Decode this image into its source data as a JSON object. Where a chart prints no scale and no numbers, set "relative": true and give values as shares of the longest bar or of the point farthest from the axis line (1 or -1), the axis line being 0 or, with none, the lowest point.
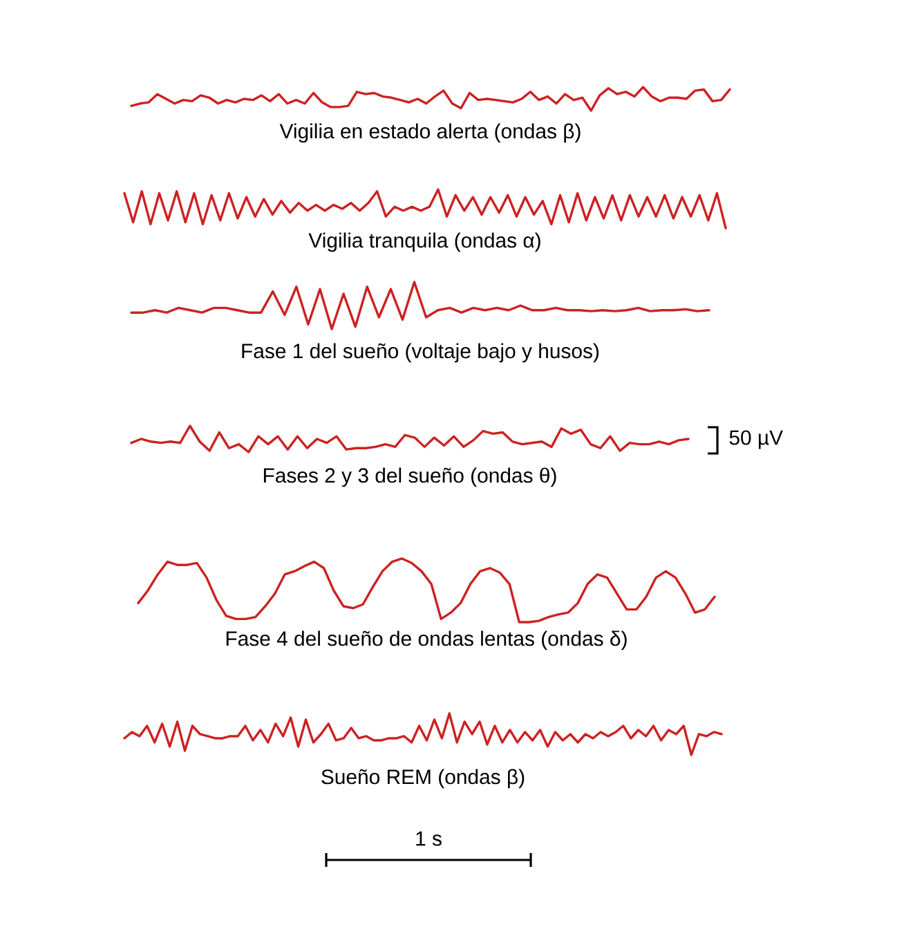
{
  "chart_data": [
    {
      "type": "line",
      "title": "Vigilia en estado alerta (ondas β)",
      "relative": true,
      "color": "#cc2222",
      "categories": [
        null,
        null,
        null,
        null,
        null,
        null,
        null,
        null,
        null,
        null,
        null,
        null,
        null,
        null,
        null,
        null,
        null,
        null,
        null,
        null,
        null,
        null,
        null,
        null,
        null,
        null,
        null,
        null,
        null,
        null,
        null,
        null,
        null,
        null,
        null,
        null,
        null,
        null,
        null,
        null,
        null,
        null,
        null,
        null,
        null,
        null,
        null,
        null,
        null,
        null,
        null,
        null,
        null,
        null,
        null,
        null,
        null,
        null,
        null,
        null,
        null,
        null,
        null,
        null,
        null,
        null,
        null,
        null,
        null,
        null
      ],
      "values": [
        0.2,
        0.3,
        0.35,
        0.7,
        0.5,
        0.3,
        0.45,
        0.4,
        0.65,
        0.55,
        0.3,
        0.45,
        0.35,
        0.5,
        0.45,
        0.65,
        0.4,
        0.7,
        0.3,
        0.45,
        0.3,
        0.75,
        0.35,
        0.15,
        0.15,
        0.2,
        0.8,
        0.7,
        0.75,
        0.6,
        0.55,
        0.45,
        0.35,
        0.5,
        0.3,
        0.6,
        0.85,
        0.3,
        0.1,
        0.75,
        0.45,
        0.5,
        0.45,
        0.4,
        0.35,
        0.5,
        0.8,
        0.45,
        0.6,
        0.3,
        0.7,
        0.45,
        0.55,
        0.0,
        0.65,
        0.95,
        0.7,
        0.8,
        0.6,
        1.0,
        0.6,
        0.4,
        0.55,
        0.55,
        0.5,
        0.85,
        0.9,
        0.4,
        0.45,
        0.9
      ]
    },
    {
      "type": "line",
      "title": "Vigilia tranquila (ondas α)",
      "relative": true,
      "color": "#cc2222",
      "categories": [
        null,
        null,
        null,
        null,
        null,
        null,
        null,
        null,
        null,
        null,
        null,
        null,
        null,
        null,
        null,
        null,
        null,
        null,
        null,
        null,
        null,
        null,
        null,
        null,
        null,
        null,
        null,
        null,
        null,
        null,
        null,
        null,
        null,
        null,
        null,
        null,
        null,
        null,
        null,
        null,
        null,
        null,
        null,
        null,
        null,
        null,
        null,
        null,
        null,
        null,
        null,
        null,
        null,
        null,
        null,
        null,
        null,
        null,
        null,
        null,
        null,
        null,
        null,
        null,
        null,
        null,
        null,
        null,
        null,
        null
      ],
      "values": [
        0.9,
        0.15,
        0.95,
        0.1,
        0.9,
        0.2,
        0.95,
        0.15,
        0.9,
        0.1,
        0.85,
        0.2,
        0.9,
        0.25,
        0.8,
        0.3,
        0.75,
        0.35,
        0.7,
        0.4,
        0.65,
        0.45,
        0.6,
        0.45,
        0.6,
        0.5,
        0.65,
        0.45,
        0.65,
        0.95,
        0.3,
        0.55,
        0.45,
        0.55,
        0.45,
        0.55,
        1.0,
        0.3,
        0.85,
        0.45,
        0.8,
        0.35,
        0.8,
        0.4,
        0.85,
        0.3,
        0.8,
        0.35,
        0.7,
        0.1,
        0.85,
        0.15,
        0.9,
        0.2,
        0.8,
        0.25,
        0.85,
        0.2,
        0.85,
        0.3,
        0.8,
        0.3,
        0.85,
        0.25,
        0.8,
        0.3,
        0.85,
        0.2,
        0.9,
        0.0
      ]
    },
    {
      "type": "line",
      "title": "Fase 1 del sueño (voltaje bajo y husos)",
      "relative": true,
      "color": "#cc2222",
      "categories": [
        null,
        null,
        null,
        null,
        null,
        null,
        null,
        null,
        null,
        null,
        null,
        null,
        null,
        null,
        null,
        null,
        null,
        null,
        null,
        null,
        null,
        null,
        null,
        null,
        null,
        null,
        null,
        null,
        null,
        null,
        null,
        null,
        null,
        null,
        null,
        null,
        null,
        null,
        null,
        null,
        null,
        null,
        null,
        null,
        null,
        null,
        null,
        null,
        null,
        null
      ],
      "values": [
        0.35,
        0.35,
        0.4,
        0.35,
        0.45,
        0.4,
        0.35,
        0.45,
        0.45,
        0.4,
        0.35,
        0.35,
        0.8,
        0.3,
        0.9,
        0.1,
        0.85,
        0.0,
        0.75,
        0.05,
        0.9,
        0.25,
        0.85,
        0.2,
        1.0,
        0.25,
        0.4,
        0.45,
        0.35,
        0.45,
        0.4,
        0.45,
        0.4,
        0.5,
        0.4,
        0.4,
        0.45,
        0.4,
        0.4,
        0.38,
        0.4,
        0.38,
        0.4,
        0.45,
        0.38,
        0.4,
        0.4,
        0.42,
        0.38,
        0.4
      ]
    },
    {
      "type": "line",
      "title": "Fases 2 y 3 del sueño (ondas θ)",
      "relative": true,
      "color": "#cc2222",
      "annotations": [
        "50 µV"
      ],
      "categories": [
        null,
        null,
        null,
        null,
        null,
        null,
        null,
        null,
        null,
        null,
        null,
        null,
        null,
        null,
        null,
        null,
        null,
        null,
        null,
        null,
        null,
        null,
        null,
        null,
        null,
        null,
        null,
        null,
        null,
        null,
        null,
        null,
        null,
        null,
        null,
        null,
        null,
        null,
        null,
        null,
        null,
        null,
        null,
        null,
        null,
        null,
        null,
        null,
        null,
        null,
        null,
        null,
        null,
        null,
        null,
        null,
        null,
        null
      ],
      "values": [
        0.35,
        0.5,
        0.4,
        0.35,
        0.4,
        0.35,
        1.0,
        0.4,
        0.05,
        0.75,
        0.15,
        0.3,
        0.0,
        0.6,
        0.3,
        0.6,
        0.1,
        0.6,
        0.15,
        0.5,
        0.35,
        0.6,
        0.1,
        0.15,
        0.15,
        0.2,
        0.3,
        0.2,
        0.65,
        0.55,
        0.2,
        0.55,
        0.25,
        0.6,
        0.2,
        0.45,
        0.8,
        0.7,
        0.75,
        0.4,
        0.3,
        0.35,
        0.4,
        0.2,
        0.9,
        0.7,
        0.85,
        0.3,
        0.15,
        0.6,
        0.05,
        0.35,
        0.3,
        0.3,
        0.4,
        0.3,
        0.45,
        0.5
      ]
    },
    {
      "type": "line",
      "title": "Fase 4 del sueño de ondas lentas (ondas δ)",
      "relative": true,
      "color": "#cc2222",
      "categories": [
        null,
        null,
        null,
        null,
        null,
        null,
        null,
        null,
        null,
        null,
        null,
        null,
        null,
        null,
        null,
        null,
        null,
        null,
        null,
        null,
        null,
        null,
        null,
        null,
        null,
        null,
        null,
        null,
        null,
        null,
        null,
        null,
        null,
        null,
        null,
        null,
        null,
        null,
        null,
        null,
        null,
        null,
        null,
        null,
        null,
        null,
        null,
        null,
        null,
        null,
        null,
        null,
        null,
        null,
        null,
        null,
        null,
        null,
        null,
        null
      ],
      "values": [
        0.3,
        0.5,
        0.75,
        0.95,
        0.9,
        0.9,
        0.93,
        0.7,
        0.35,
        0.1,
        0.05,
        0.05,
        0.08,
        0.25,
        0.45,
        0.75,
        0.8,
        0.88,
        0.95,
        0.85,
        0.5,
        0.25,
        0.22,
        0.28,
        0.55,
        0.8,
        0.95,
        1.0,
        0.93,
        0.8,
        0.6,
        0.05,
        0.15,
        0.3,
        0.6,
        0.8,
        0.85,
        0.78,
        0.6,
        0.0,
        0.0,
        0.02,
        0.08,
        0.12,
        0.15,
        0.3,
        0.6,
        0.75,
        0.7,
        0.45,
        0.2,
        0.2,
        0.4,
        0.7,
        0.8,
        0.7,
        0.45,
        0.15,
        0.2,
        0.4
      ]
    },
    {
      "type": "line",
      "title": "Sueño REM (ondas β)",
      "relative": true,
      "color": "#cc2222",
      "annotations": [
        "1 s"
      ],
      "categories": [
        null,
        null,
        null,
        null,
        null,
        null,
        null,
        null,
        null,
        null,
        null,
        null,
        null,
        null,
        null,
        null,
        null,
        null,
        null,
        null,
        null,
        null,
        null,
        null,
        null,
        null,
        null,
        null,
        null,
        null,
        null,
        null,
        null,
        null,
        null,
        null,
        null,
        null,
        null,
        null,
        null,
        null,
        null,
        null,
        null,
        null,
        null,
        null,
        null,
        null,
        null,
        null,
        null,
        null,
        null,
        null,
        null,
        null,
        null,
        null,
        null,
        null,
        null,
        null,
        null,
        null,
        null,
        null,
        null,
        null,
        null,
        null,
        null,
        null,
        null,
        null,
        null,
        null,
        null,
        null
      ],
      "values": [
        0.4,
        0.55,
        0.45,
        0.7,
        0.3,
        0.75,
        0.2,
        0.8,
        0.1,
        0.7,
        0.5,
        0.45,
        0.4,
        0.4,
        0.45,
        0.45,
        0.7,
        0.35,
        0.6,
        0.3,
        0.75,
        0.45,
        0.9,
        0.2,
        0.85,
        0.3,
        0.5,
        0.75,
        0.35,
        0.4,
        0.65,
        0.4,
        0.45,
        0.35,
        0.35,
        0.4,
        0.4,
        0.45,
        0.3,
        0.7,
        0.35,
        0.85,
        0.4,
        1.0,
        0.3,
        0.8,
        0.5,
        0.8,
        0.25,
        0.7,
        0.3,
        0.6,
        0.3,
        0.55,
        0.35,
        0.6,
        0.2,
        0.55,
        0.35,
        0.5,
        0.3,
        0.5,
        0.4,
        0.55,
        0.45,
        0.55,
        0.7,
        0.4,
        0.6,
        0.45,
        0.7,
        0.35,
        0.6,
        0.5,
        0.7,
        0.0,
        0.5,
        0.45,
        0.55,
        0.5
      ]
    }
  ]
}
